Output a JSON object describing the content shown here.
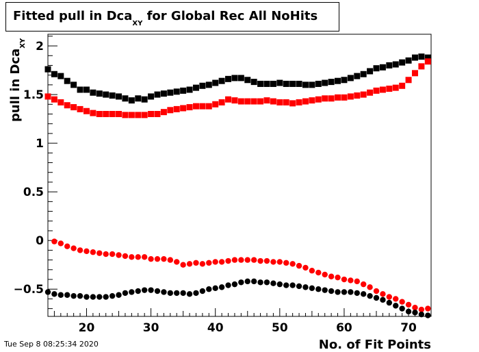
{
  "title": {
    "main": "Fitted pull in Dca",
    "sub": "XY",
    "rest": " for Global Rec All NoHits"
  },
  "axes": {
    "xlabel": "No. of Fit Points",
    "ylabel_main": "pull in Dca",
    "ylabel_sub": "XY"
  },
  "timestamp": "Tue Sep  8 08:25:34 2020",
  "chart_data": {
    "type": "scatter",
    "xlim": [
      14,
      73.5
    ],
    "ylim": [
      -0.78,
      2.12
    ],
    "x_ticks": [
      20,
      30,
      40,
      50,
      60,
      70
    ],
    "y_ticks": [
      -0.5,
      0,
      0.5,
      1,
      1.5,
      2
    ],
    "x_tick_labels": [
      "20",
      "30",
      "40",
      "50",
      "60",
      "70"
    ],
    "y_tick_labels": [
      "−0.5",
      "0",
      "0.5",
      "1",
      "1.5",
      "2"
    ],
    "grid": false,
    "series": [
      {
        "marker": "square",
        "color": "#000000",
        "x": [
          14,
          15,
          16,
          17,
          18,
          19,
          20,
          21,
          22,
          23,
          24,
          25,
          26,
          27,
          28,
          29,
          30,
          31,
          32,
          33,
          34,
          35,
          36,
          37,
          38,
          39,
          40,
          41,
          42,
          43,
          44,
          45,
          46,
          47,
          48,
          49,
          50,
          51,
          52,
          53,
          54,
          55,
          56,
          57,
          58,
          59,
          60,
          61,
          62,
          63,
          64,
          65,
          66,
          67,
          68,
          69,
          70,
          71,
          72,
          73
        ],
        "y": [
          1.76,
          1.71,
          1.69,
          1.64,
          1.6,
          1.55,
          1.55,
          1.52,
          1.51,
          1.5,
          1.49,
          1.48,
          1.46,
          1.44,
          1.46,
          1.45,
          1.48,
          1.5,
          1.51,
          1.52,
          1.53,
          1.54,
          1.55,
          1.57,
          1.59,
          1.6,
          1.62,
          1.64,
          1.66,
          1.67,
          1.67,
          1.65,
          1.63,
          1.61,
          1.61,
          1.61,
          1.62,
          1.61,
          1.61,
          1.61,
          1.6,
          1.6,
          1.61,
          1.62,
          1.63,
          1.64,
          1.65,
          1.67,
          1.69,
          1.71,
          1.74,
          1.77,
          1.78,
          1.8,
          1.81,
          1.83,
          1.85,
          1.88,
          1.89,
          1.88
        ]
      },
      {
        "marker": "square",
        "color": "#ff0000",
        "x": [
          14,
          15,
          16,
          17,
          18,
          19,
          20,
          21,
          22,
          23,
          24,
          25,
          26,
          27,
          28,
          29,
          30,
          31,
          32,
          33,
          34,
          35,
          36,
          37,
          38,
          39,
          40,
          41,
          42,
          43,
          44,
          45,
          46,
          47,
          48,
          49,
          50,
          51,
          52,
          53,
          54,
          55,
          56,
          57,
          58,
          59,
          60,
          61,
          62,
          63,
          64,
          65,
          66,
          67,
          68,
          69,
          70,
          71,
          72,
          73
        ],
        "y": [
          1.48,
          1.45,
          1.42,
          1.39,
          1.37,
          1.35,
          1.33,
          1.31,
          1.3,
          1.3,
          1.3,
          1.3,
          1.29,
          1.29,
          1.29,
          1.29,
          1.3,
          1.3,
          1.32,
          1.34,
          1.35,
          1.36,
          1.37,
          1.38,
          1.38,
          1.38,
          1.4,
          1.42,
          1.45,
          1.44,
          1.43,
          1.43,
          1.43,
          1.43,
          1.44,
          1.43,
          1.42,
          1.42,
          1.41,
          1.42,
          1.43,
          1.44,
          1.45,
          1.46,
          1.46,
          1.47,
          1.47,
          1.48,
          1.49,
          1.5,
          1.52,
          1.54,
          1.55,
          1.56,
          1.57,
          1.59,
          1.65,
          1.72,
          1.79,
          1.84
        ]
      },
      {
        "marker": "circle",
        "color": "#ff0000",
        "x": [
          15,
          16,
          17,
          18,
          19,
          20,
          21,
          22,
          23,
          24,
          25,
          26,
          27,
          28,
          29,
          30,
          31,
          32,
          33,
          34,
          35,
          36,
          37,
          38,
          39,
          40,
          41,
          42,
          43,
          44,
          45,
          46,
          47,
          48,
          49,
          50,
          51,
          52,
          53,
          54,
          55,
          56,
          57,
          58,
          59,
          60,
          61,
          62,
          63,
          64,
          65,
          66,
          67,
          68,
          69,
          70,
          71,
          72,
          73
        ],
        "y": [
          -0.01,
          -0.03,
          -0.06,
          -0.08,
          -0.1,
          -0.11,
          -0.12,
          -0.13,
          -0.14,
          -0.14,
          -0.15,
          -0.16,
          -0.17,
          -0.17,
          -0.17,
          -0.19,
          -0.19,
          -0.19,
          -0.2,
          -0.22,
          -0.25,
          -0.24,
          -0.23,
          -0.24,
          -0.23,
          -0.22,
          -0.22,
          -0.21,
          -0.2,
          -0.2,
          -0.2,
          -0.2,
          -0.21,
          -0.21,
          -0.22,
          -0.22,
          -0.23,
          -0.24,
          -0.26,
          -0.28,
          -0.31,
          -0.33,
          -0.35,
          -0.37,
          -0.38,
          -0.4,
          -0.41,
          -0.42,
          -0.45,
          -0.48,
          -0.52,
          -0.55,
          -0.58,
          -0.6,
          -0.63,
          -0.66,
          -0.69,
          -0.71,
          -0.7
        ]
      },
      {
        "marker": "circle",
        "color": "#000000",
        "x": [
          14,
          15,
          16,
          17,
          18,
          19,
          20,
          21,
          22,
          23,
          24,
          25,
          26,
          27,
          28,
          29,
          30,
          31,
          32,
          33,
          34,
          35,
          36,
          37,
          38,
          39,
          40,
          41,
          42,
          43,
          44,
          45,
          46,
          47,
          48,
          49,
          50,
          51,
          52,
          53,
          54,
          55,
          56,
          57,
          58,
          59,
          60,
          61,
          62,
          63,
          64,
          65,
          66,
          67,
          68,
          69,
          70,
          71,
          72,
          73
        ],
        "y": [
          -0.53,
          -0.55,
          -0.56,
          -0.56,
          -0.57,
          -0.57,
          -0.58,
          -0.58,
          -0.58,
          -0.58,
          -0.57,
          -0.56,
          -0.54,
          -0.53,
          -0.52,
          -0.51,
          -0.51,
          -0.52,
          -0.53,
          -0.54,
          -0.54,
          -0.54,
          -0.55,
          -0.54,
          -0.52,
          -0.5,
          -0.49,
          -0.48,
          -0.46,
          -0.45,
          -0.43,
          -0.42,
          -0.42,
          -0.43,
          -0.43,
          -0.44,
          -0.45,
          -0.46,
          -0.46,
          -0.47,
          -0.48,
          -0.49,
          -0.5,
          -0.51,
          -0.52,
          -0.53,
          -0.53,
          -0.53,
          -0.54,
          -0.55,
          -0.57,
          -0.59,
          -0.61,
          -0.64,
          -0.67,
          -0.7,
          -0.73,
          -0.74,
          -0.76,
          -0.77
        ]
      }
    ]
  }
}
